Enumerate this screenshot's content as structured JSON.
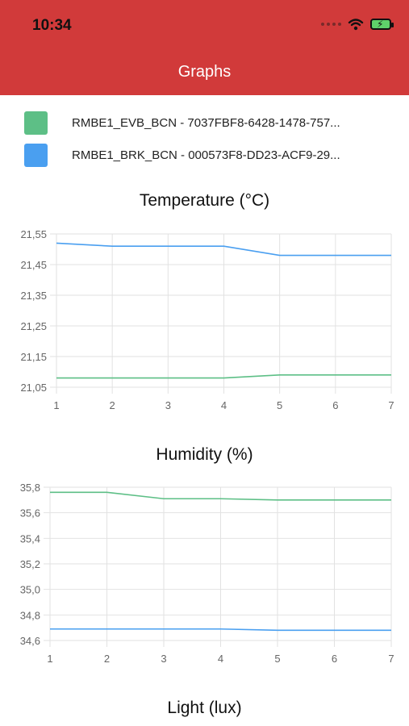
{
  "status": {
    "time": "10:34"
  },
  "header": {
    "title": "Graphs"
  },
  "legend": [
    {
      "label": "RMBE1_EVB_BCN - 7037FBF8-6428-1478-757...",
      "color": "#5dbf86"
    },
    {
      "label": "RMBE1_BRK_BCN - 000573F8-DD23-ACF9-29...",
      "color": "#4a9ff0"
    }
  ],
  "colors": {
    "accent": "#d13a3a",
    "series_green": "#5dbf86",
    "series_blue": "#4a9ff0",
    "grid": "#e2e2e2"
  },
  "chart_data": [
    {
      "type": "line",
      "title": "Temperature (°C)",
      "x": [
        1,
        2,
        3,
        4,
        5,
        6,
        7
      ],
      "ylim": [
        21.05,
        21.55
      ],
      "yticks": [
        "21,55",
        "21,45",
        "21,35",
        "21,25",
        "21,15",
        "21,05"
      ],
      "grid": true,
      "series": [
        {
          "color": "#4a9ff0",
          "values": [
            21.52,
            21.51,
            21.51,
            21.51,
            21.48,
            21.48,
            21.48
          ]
        },
        {
          "color": "#5dbf86",
          "values": [
            21.08,
            21.08,
            21.08,
            21.08,
            21.09,
            21.09,
            21.09
          ]
        }
      ]
    },
    {
      "type": "line",
      "title": "Humidity (%)",
      "x": [
        1,
        2,
        3,
        4,
        5,
        6,
        7
      ],
      "ylim": [
        34.6,
        35.8
      ],
      "yticks": [
        "35,8",
        "35,6",
        "35,4",
        "35,2",
        "35,0",
        "34,8",
        "34,6"
      ],
      "grid": true,
      "series": [
        {
          "color": "#5dbf86",
          "values": [
            35.76,
            35.76,
            35.71,
            35.71,
            35.7,
            35.7,
            35.7
          ]
        },
        {
          "color": "#4a9ff0",
          "values": [
            34.69,
            34.69,
            34.69,
            34.69,
            34.68,
            34.68,
            34.68
          ]
        }
      ]
    },
    {
      "type": "line",
      "title": "Light (lux)"
    }
  ]
}
